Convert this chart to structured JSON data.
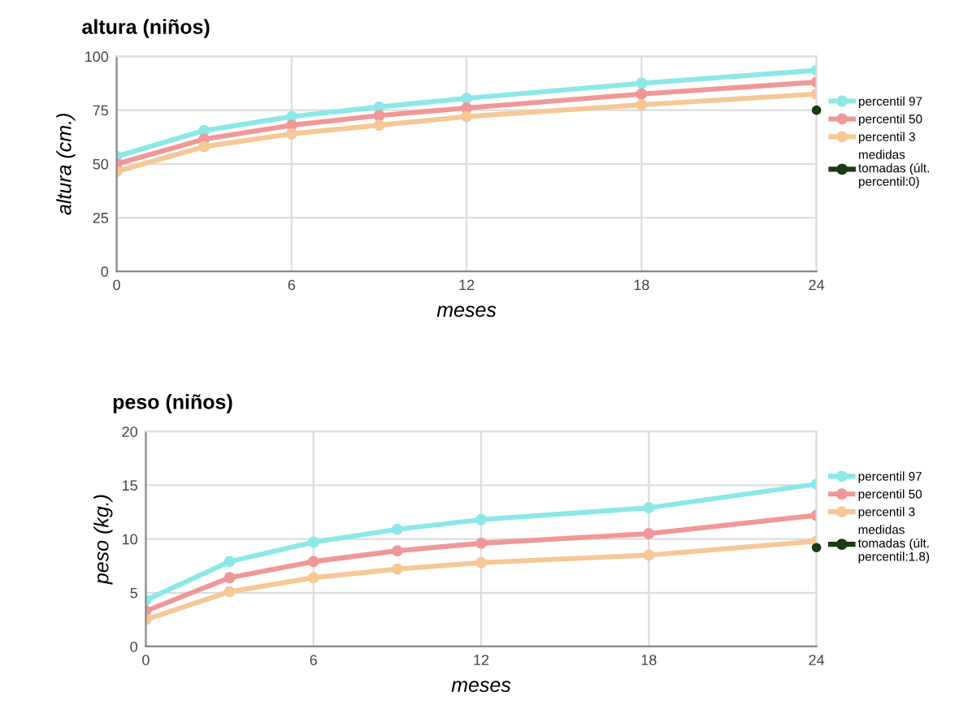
{
  "chart_data": [
    {
      "type": "line",
      "title": "altura (niños)",
      "xlabel": "meses",
      "ylabel": "altura (cm.)",
      "x": [
        0,
        3,
        6,
        9,
        12,
        18,
        24
      ],
      "xlim": [
        0,
        24
      ],
      "xticks": [
        0,
        6,
        12,
        18,
        24
      ],
      "ylim": [
        0,
        100
      ],
      "yticks": [
        0,
        25,
        50,
        75,
        100
      ],
      "grid": true,
      "legend": "right",
      "marker": "circle",
      "series": [
        {
          "name": "percentil 97",
          "color": "#8ce8e8",
          "values": [
            53.5,
            65.5,
            72,
            76.5,
            80.5,
            87.5,
            93.5
          ]
        },
        {
          "name": "percentil 50",
          "color": "#f09898",
          "values": [
            50,
            61.5,
            68,
            72.5,
            76,
            82.5,
            88
          ]
        },
        {
          "name": "percentil 3",
          "color": "#f5c896",
          "values": [
            46.5,
            58,
            64,
            68,
            72,
            77.5,
            82.5
          ]
        },
        {
          "name": "medidas tomadas (últ. percentil:0)",
          "type": "scatter",
          "color": "#1a3a10",
          "x": [
            24
          ],
          "values": [
            75
          ]
        }
      ]
    },
    {
      "type": "line",
      "title": "peso (niños)",
      "xlabel": "meses",
      "ylabel": "peso (kg.)",
      "x": [
        0,
        3,
        6,
        9,
        12,
        18,
        24
      ],
      "xlim": [
        0,
        24
      ],
      "xticks": [
        0,
        6,
        12,
        18,
        24
      ],
      "ylim": [
        0,
        20
      ],
      "yticks": [
        0,
        5,
        10,
        15,
        20
      ],
      "grid": true,
      "legend": "right",
      "marker": "circle",
      "series": [
        {
          "name": "percentil 97",
          "color": "#8ce8e8",
          "values": [
            4.3,
            7.9,
            9.7,
            10.9,
            11.8,
            12.9,
            15.1
          ]
        },
        {
          "name": "percentil 50",
          "color": "#f09898",
          "values": [
            3.3,
            6.4,
            7.9,
            8.9,
            9.6,
            10.5,
            12.2
          ]
        },
        {
          "name": "percentil 3",
          "color": "#f5c896",
          "values": [
            2.5,
            5.1,
            6.4,
            7.2,
            7.8,
            8.5,
            9.8
          ]
        },
        {
          "name": "medidas tomadas (últ. percentil:1.8)",
          "type": "scatter",
          "color": "#1a3a10",
          "x": [
            24
          ],
          "values": [
            9.2
          ]
        }
      ]
    }
  ]
}
